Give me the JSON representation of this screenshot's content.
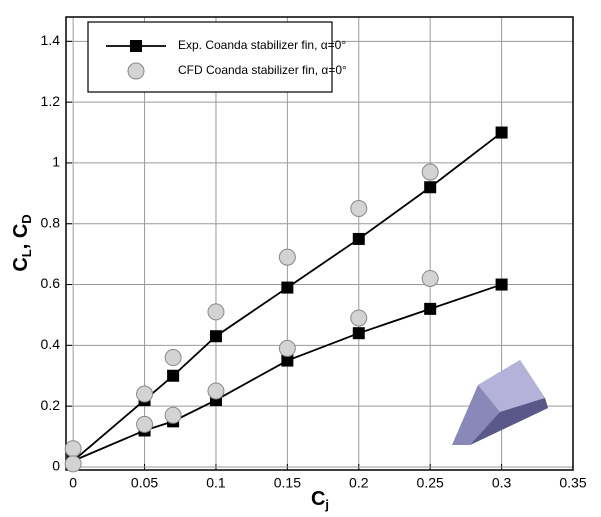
{
  "chart_data": {
    "type": "line-scatter",
    "x_label": [
      "C",
      "j"
    ],
    "y_label": [
      "C",
      "L",
      ", C",
      "D"
    ],
    "xlim": [
      -0.005,
      0.35
    ],
    "ylim": [
      -0.01,
      1.48
    ],
    "xticks": [
      0,
      0.05,
      0.1,
      0.15,
      0.2,
      0.25,
      0.3,
      0.35
    ],
    "yticks": [
      0,
      0.2,
      0.4,
      0.6,
      0.8,
      1,
      1.2,
      1.4
    ],
    "grid": true,
    "legend": "top-left",
    "series": [
      {
        "name": "Exp. Coanda stabilizer fin, α=0°",
        "style": "line-square",
        "color": "#000000",
        "curves": [
          {
            "x": [
              0,
              0.05,
              0.07,
              0.1,
              0.15,
              0.2,
              0.25,
              0.3
            ],
            "values": [
              0.02,
              0.22,
              0.3,
              0.43,
              0.59,
              0.75,
              0.92,
              1.1
            ]
          },
          {
            "x": [
              0,
              0.05,
              0.07,
              0.1,
              0.15,
              0.2,
              0.25,
              0.3
            ],
            "values": [
              0.02,
              0.12,
              0.15,
              0.22,
              0.35,
              0.44,
              0.52,
              0.6
            ]
          }
        ]
      },
      {
        "name": "CFD Coanda stabilizer fin, α=0°",
        "style": "circle",
        "color": "#d3d3d3",
        "curves": [
          {
            "x": [
              0,
              0.05,
              0.07,
              0.1,
              0.15,
              0.2,
              0.25
            ],
            "values": [
              0.06,
              0.24,
              0.36,
              0.51,
              0.69,
              0.85,
              0.97
            ]
          },
          {
            "x": [
              0,
              0.05,
              0.07,
              0.1,
              0.15,
              0.2,
              0.25
            ],
            "values": [
              0.01,
              0.14,
              0.17,
              0.25,
              0.39,
              0.49,
              0.62
            ]
          }
        ]
      }
    ]
  }
}
